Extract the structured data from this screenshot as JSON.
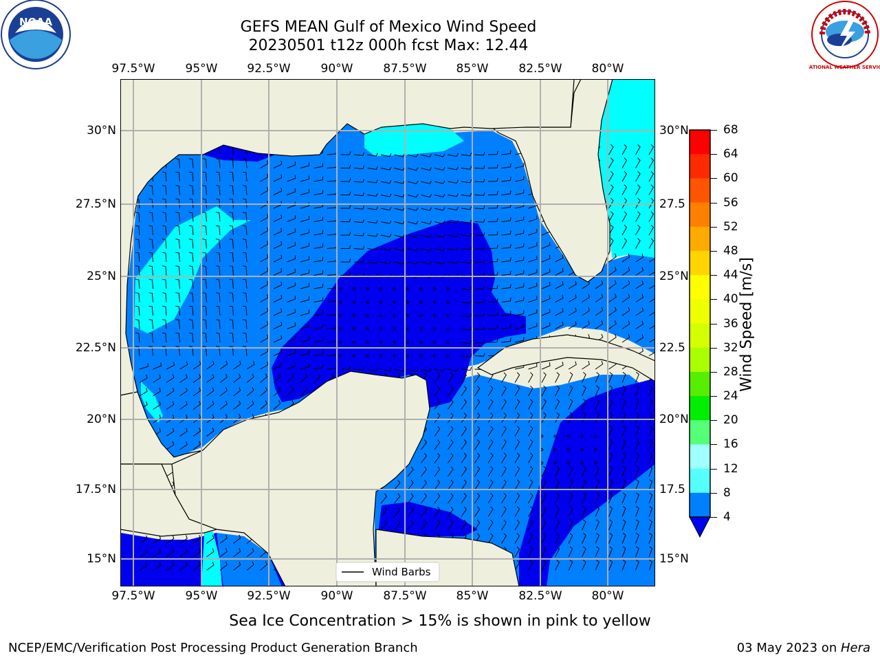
{
  "title": {
    "line1": "GEFS MEAN Gulf of Mexico Wind Speed",
    "line2": "20230501 t12z 000h fcst   Max: 12.44"
  },
  "axes": {
    "lon_ticks": [
      "97.5°W",
      "95°W",
      "92.5°W",
      "90°W",
      "87.5°W",
      "85°W",
      "82.5°W",
      "80°W"
    ],
    "lat_ticks_left": [
      "30°N",
      "27.5°N",
      "25°N",
      "22.5°N",
      "20°N",
      "17.5°N",
      "15°N"
    ],
    "lat_ticks_right": [
      "30°N",
      "27.5",
      "25°N",
      "22.5",
      "20°N",
      "17.5",
      "15°N"
    ]
  },
  "legend": {
    "label": "Wind Barbs"
  },
  "colorbar": {
    "label": "Wind Speed [m/s]",
    "ticks": [
      "68",
      "64",
      "60",
      "56",
      "52",
      "48",
      "44",
      "40",
      "36",
      "32",
      "28",
      "24",
      "20",
      "16",
      "12",
      "8",
      "4"
    ],
    "colors": [
      "#ff0000",
      "#ff2a00",
      "#ff5500",
      "#ff8000",
      "#ffaa00",
      "#ffd400",
      "#ffff00",
      "#eeff00",
      "#d4ff00",
      "#aaff00",
      "#55ee00",
      "#00ee00",
      "#55ff77",
      "#a0ffff",
      "#55ffff",
      "#00ffff",
      "#0080ff"
    ],
    "extend_color": "#0000ee"
  },
  "caption": "Sea Ice Concentration > 15% is shown in pink to yellow",
  "footer": {
    "left": "NCEP/EMC/Verification Post Processing Product Generation Branch",
    "right_date": "03 May 2023 on ",
    "right_machine": "Hera"
  },
  "logos": {
    "noaa_text": "NOAA",
    "nws_text": "NATIONAL WEATHER SERVICE"
  },
  "colors": {
    "land": "#efefdd",
    "speed_lt4": "#0000ee",
    "speed_4_8": "#0080ff",
    "speed_8_12": "#00ffff",
    "speed_12_16": "#55ffff"
  }
}
